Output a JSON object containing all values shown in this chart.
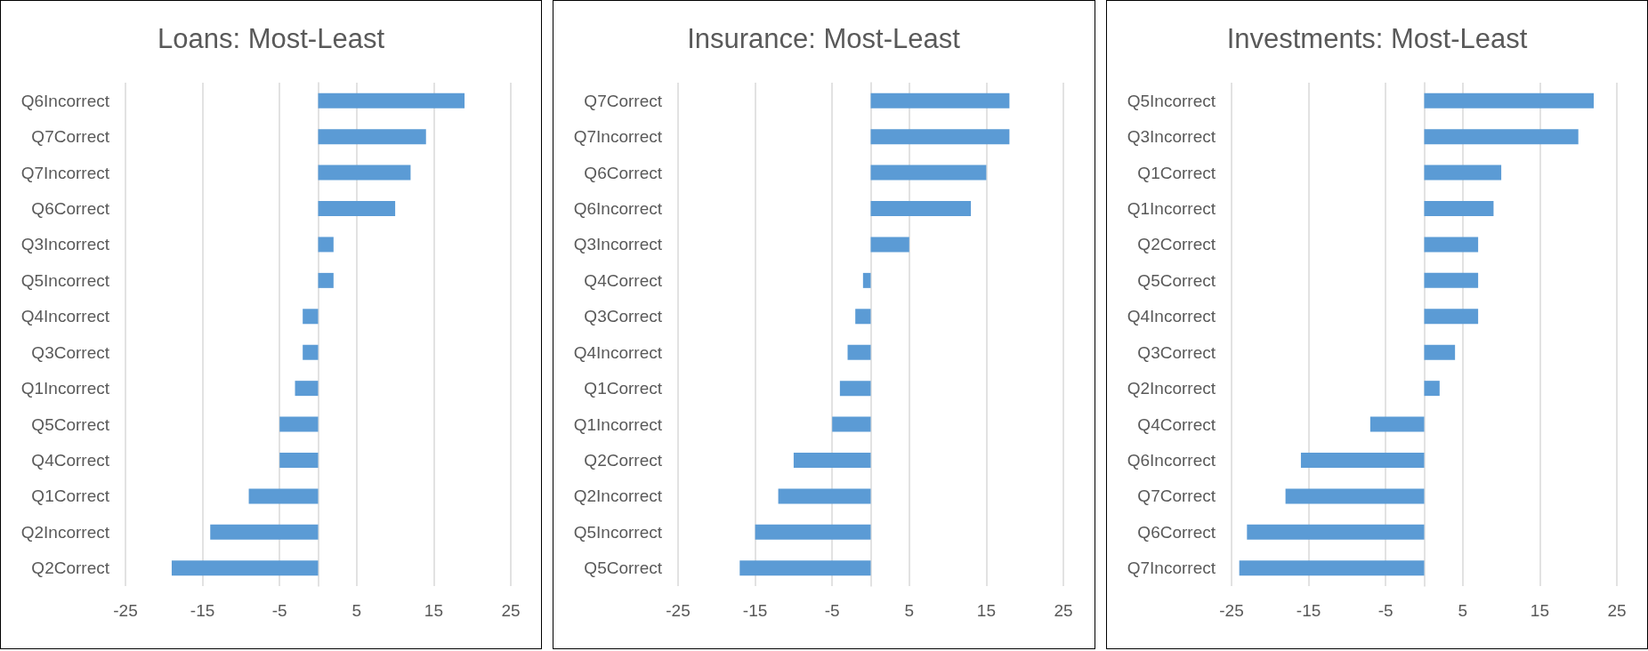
{
  "chart_data": [
    {
      "type": "bar",
      "orientation": "horizontal",
      "title": "Loans: Most-Least",
      "categories": [
        "Q6Incorrect",
        "Q7Correct",
        "Q7Incorrect",
        "Q6Correct",
        "Q3Incorrect",
        "Q5Incorrect",
        "Q4Incorrect",
        "Q3Correct",
        "Q1Incorrect",
        "Q5Correct",
        "Q4Correct",
        "Q1Correct",
        "Q2Incorrect",
        "Q2Correct"
      ],
      "values": [
        19,
        14,
        12,
        10,
        2,
        2,
        -2,
        -2,
        -3,
        -5,
        -5,
        -9,
        -14,
        -19
      ],
      "color": "#5b9bd5",
      "xlim": [
        -25,
        25
      ],
      "xticks": [
        -25,
        -15,
        -5,
        5,
        15,
        25
      ],
      "grid": "x"
    },
    {
      "type": "bar",
      "orientation": "horizontal",
      "title": "Insurance: Most-Least",
      "categories": [
        "Q7Correct",
        "Q7Incorrect",
        "Q6Correct",
        "Q6Incorrect",
        "Q3Incorrect",
        "Q4Correct",
        "Q3Correct",
        "Q4Incorrect",
        "Q1Correct",
        "Q1Incorrect",
        "Q2Correct",
        "Q2Incorrect",
        "Q5Incorrect",
        "Q5Correct"
      ],
      "values": [
        18,
        18,
        15,
        13,
        5,
        -1,
        -2,
        -3,
        -4,
        -5,
        -10,
        -12,
        -15,
        -17
      ],
      "color": "#5b9bd5",
      "xlim": [
        -25,
        25
      ],
      "xticks": [
        -25,
        -15,
        -5,
        5,
        15,
        25
      ],
      "grid": "x"
    },
    {
      "type": "bar",
      "orientation": "horizontal",
      "title": "Investments: Most-Least",
      "categories": [
        "Q5Incorrect",
        "Q3Incorrect",
        "Q1Correct",
        "Q1Incorrect",
        "Q2Correct",
        "Q5Correct",
        "Q4Incorrect",
        "Q3Correct",
        "Q2Incorrect",
        "Q4Correct",
        "Q6Incorrect",
        "Q7Correct",
        "Q6Correct",
        "Q7Incorrect"
      ],
      "values": [
        22,
        20,
        10,
        9,
        7,
        7,
        7,
        4,
        2,
        -7,
        -16,
        -18,
        -23,
        -24
      ],
      "color": "#5b9bd5",
      "xlim": [
        -25,
        25
      ],
      "xticks": [
        -25,
        -15,
        -5,
        5,
        15,
        25
      ],
      "grid": "x"
    }
  ]
}
